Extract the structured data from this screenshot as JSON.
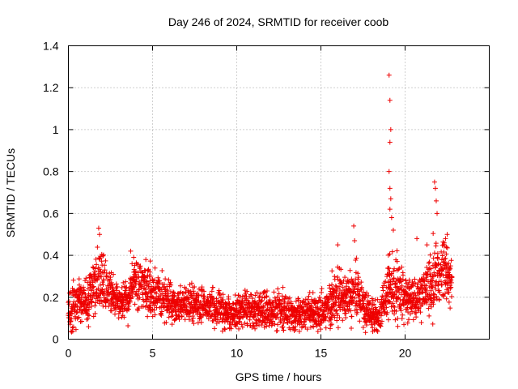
{
  "chart_data": {
    "type": "scatter",
    "title": "Day 246 of 2024, SRMTID for receiver coob",
    "xlabel": "GPS time / hours",
    "ylabel": "SRMTID / TECUs",
    "xlim": [
      0,
      25
    ],
    "ylim": [
      0,
      1.4
    ],
    "x_ticks": [
      0,
      5,
      10,
      15,
      20
    ],
    "x_tick_labels": [
      "0",
      "5",
      "10",
      "15",
      "20"
    ],
    "y_ticks": [
      0,
      0.2,
      0.4,
      0.6,
      0.8,
      1.0,
      1.2,
      1.4
    ],
    "y_tick_labels": [
      "0",
      "0.2",
      "0.4",
      "0.6",
      "0.8",
      "1",
      "1.2",
      "1.4"
    ],
    "grid": true,
    "marker": "plus",
    "marker_color": "#ee0000",
    "series": [
      {
        "name": "SRMTID",
        "envelope": [
          {
            "x": 0.0,
            "y": 0.12,
            "spread": 0.07
          },
          {
            "x": 0.5,
            "y": 0.16,
            "spread": 0.09
          },
          {
            "x": 1.0,
            "y": 0.17,
            "spread": 0.08
          },
          {
            "x": 1.5,
            "y": 0.24,
            "spread": 0.1
          },
          {
            "x": 1.9,
            "y": 0.3,
            "spread": 0.12
          },
          {
            "x": 2.3,
            "y": 0.25,
            "spread": 0.08
          },
          {
            "x": 3.0,
            "y": 0.18,
            "spread": 0.06
          },
          {
            "x": 3.5,
            "y": 0.18,
            "spread": 0.06
          },
          {
            "x": 3.9,
            "y": 0.27,
            "spread": 0.08
          },
          {
            "x": 4.5,
            "y": 0.25,
            "spread": 0.08
          },
          {
            "x": 5.5,
            "y": 0.2,
            "spread": 0.07
          },
          {
            "x": 6.5,
            "y": 0.16,
            "spread": 0.05
          },
          {
            "x": 7.5,
            "y": 0.17,
            "spread": 0.06
          },
          {
            "x": 8.5,
            "y": 0.16,
            "spread": 0.06
          },
          {
            "x": 9.5,
            "y": 0.12,
            "spread": 0.05
          },
          {
            "x": 10.5,
            "y": 0.15,
            "spread": 0.06
          },
          {
            "x": 11.5,
            "y": 0.13,
            "spread": 0.06
          },
          {
            "x": 12.5,
            "y": 0.14,
            "spread": 0.07
          },
          {
            "x": 13.5,
            "y": 0.12,
            "spread": 0.05
          },
          {
            "x": 14.5,
            "y": 0.13,
            "spread": 0.06
          },
          {
            "x": 15.2,
            "y": 0.12,
            "spread": 0.06
          },
          {
            "x": 16.0,
            "y": 0.22,
            "spread": 0.1
          },
          {
            "x": 16.6,
            "y": 0.17,
            "spread": 0.07
          },
          {
            "x": 17.0,
            "y": 0.26,
            "spread": 0.12
          },
          {
            "x": 17.6,
            "y": 0.14,
            "spread": 0.06
          },
          {
            "x": 18.5,
            "y": 0.1,
            "spread": 0.05
          },
          {
            "x": 19.1,
            "y": 0.28,
            "spread": 0.12
          },
          {
            "x": 19.6,
            "y": 0.22,
            "spread": 0.1
          },
          {
            "x": 20.2,
            "y": 0.18,
            "spread": 0.08
          },
          {
            "x": 21.0,
            "y": 0.21,
            "spread": 0.07
          },
          {
            "x": 21.8,
            "y": 0.3,
            "spread": 0.12
          },
          {
            "x": 22.3,
            "y": 0.35,
            "spread": 0.1
          },
          {
            "x": 22.8,
            "y": 0.26,
            "spread": 0.08
          }
        ],
        "peaks": [
          {
            "x": 1.8,
            "y": 0.53
          },
          {
            "x": 1.85,
            "y": 0.5
          },
          {
            "x": 3.7,
            "y": 0.42
          },
          {
            "x": 4.6,
            "y": 0.38
          },
          {
            "x": 16.0,
            "y": 0.45
          },
          {
            "x": 16.95,
            "y": 0.54
          },
          {
            "x": 17.0,
            "y": 0.47
          },
          {
            "x": 19.05,
            "y": 1.26
          },
          {
            "x": 19.1,
            "y": 1.14
          },
          {
            "x": 19.15,
            "y": 1.0
          },
          {
            "x": 19.1,
            "y": 0.94
          },
          {
            "x": 19.05,
            "y": 0.8
          },
          {
            "x": 19.1,
            "y": 0.72
          },
          {
            "x": 19.15,
            "y": 0.67
          },
          {
            "x": 19.1,
            "y": 0.62
          },
          {
            "x": 19.2,
            "y": 0.58
          },
          {
            "x": 19.3,
            "y": 0.52
          },
          {
            "x": 21.75,
            "y": 0.75
          },
          {
            "x": 21.8,
            "y": 0.72
          },
          {
            "x": 21.85,
            "y": 0.66
          },
          {
            "x": 21.9,
            "y": 0.6
          },
          {
            "x": 22.5,
            "y": 0.5
          },
          {
            "x": 22.4,
            "y": 0.48
          },
          {
            "x": 21.3,
            "y": 0.45
          },
          {
            "x": 20.7,
            "y": 0.48
          }
        ]
      }
    ]
  }
}
